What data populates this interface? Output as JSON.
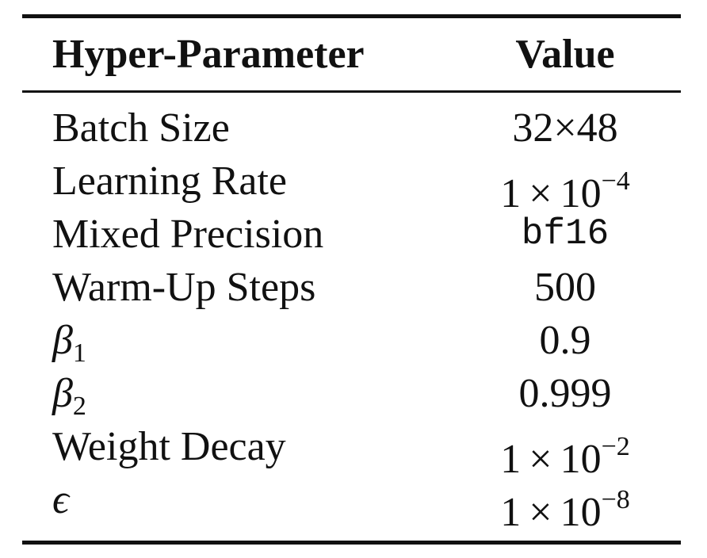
{
  "table": {
    "headers": {
      "param": "Hyper-Parameter",
      "value": "Value"
    },
    "rows": [
      {
        "param": "Batch Size",
        "value": "32×48"
      },
      {
        "param": "Learning Rate",
        "value_base": "1",
        "value_times": "×",
        "value_mant": "10",
        "value_exp": "−4"
      },
      {
        "param": "Mixed Precision",
        "value": "bf16"
      },
      {
        "param": "Warm-Up Steps",
        "value": "500"
      },
      {
        "param_symbol": "β",
        "param_sub": "1",
        "value": "0.9"
      },
      {
        "param_symbol": "β",
        "param_sub": "2",
        "value": "0.999"
      },
      {
        "param": "Weight Decay",
        "value_base": "1",
        "value_times": "×",
        "value_mant": "10",
        "value_exp": "−2"
      },
      {
        "param_symbol": "ϵ",
        "value_base": "1",
        "value_times": "×",
        "value_mant": "10",
        "value_exp": "−8"
      }
    ]
  }
}
